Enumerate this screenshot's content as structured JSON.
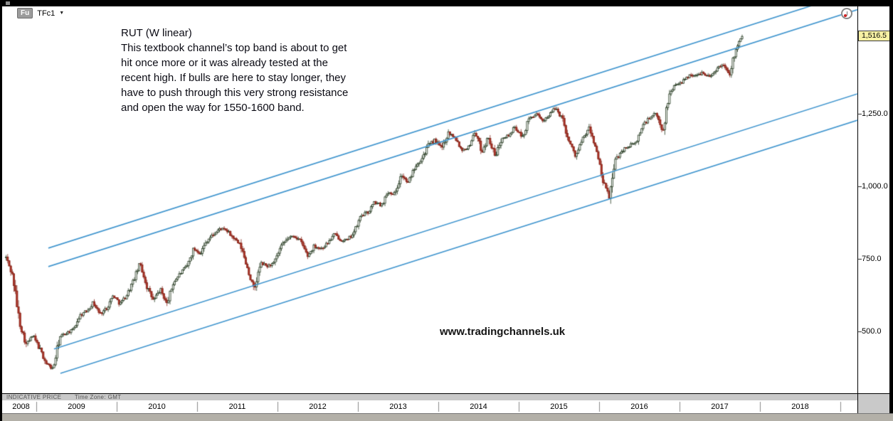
{
  "window": {
    "badge": "Fu",
    "symbol": "TFc1",
    "dropdown": "▼"
  },
  "annotation": {
    "title": "RUT (W linear)",
    "lines": [
      "This textbook channel’s top band is about to get",
      "hit once more or it was already tested at the",
      "recent high. If bulls are here to stay longer, they",
      "have to push through this very strong resistance",
      "and open the way for 1550-1600 band."
    ]
  },
  "watermark": "www.tradingchannels.uk",
  "status_bar": {
    "indicative": "INDICATIVE PRICE",
    "timezone": "Time Zone: GMT"
  },
  "price_axis": {
    "current": "1,516.5",
    "current_value": 1516.5,
    "ticks": [
      {
        "label": "1,250.0",
        "value": 1250
      },
      {
        "label": "1,000.0",
        "value": 1000
      },
      {
        "label": "750.0",
        "value": 750
      },
      {
        "label": "500.0",
        "value": 500
      }
    ]
  },
  "time_axis": {
    "years": [
      "2008",
      "2009",
      "2010",
      "2011",
      "2012",
      "2013",
      "2014",
      "2015",
      "2016",
      "2017",
      "2018"
    ]
  },
  "colors": {
    "channel": "#4497cf",
    "up_fill": "#ffffff",
    "up_stroke": "#24391f",
    "down_fill": "#b23327",
    "down_stroke": "#832318",
    "current_tag_bg": "#f8f1a4"
  },
  "chart_data": {
    "type": "candlestick",
    "instrument": "RUT (TFc1 Russell 2000 futures)",
    "interval": "weekly, linear scale",
    "x_range_years": [
      2008.6,
      2019.6
    ],
    "y_axis_range": [
      290,
      1615
    ],
    "y_tick_values": [
      500,
      750,
      1000,
      1250
    ],
    "last_price": 1516.5,
    "grid": false,
    "monthly_closes": [
      [
        "2008-08",
        755
      ],
      [
        "2008-09",
        690
      ],
      [
        "2008-10",
        530
      ],
      [
        "2008-11",
        455
      ],
      [
        "2008-12",
        485
      ],
      [
        "2009-01",
        440
      ],
      [
        "2009-02",
        390
      ],
      [
        "2009-03",
        370
      ],
      [
        "2009-04",
        480
      ],
      [
        "2009-05",
        495
      ],
      [
        "2009-06",
        505
      ],
      [
        "2009-07",
        555
      ],
      [
        "2009-08",
        570
      ],
      [
        "2009-09",
        600
      ],
      [
        "2009-10",
        560
      ],
      [
        "2009-11",
        580
      ],
      [
        "2009-12",
        625
      ],
      [
        "2010-01",
        595
      ],
      [
        "2010-02",
        625
      ],
      [
        "2010-03",
        675
      ],
      [
        "2010-04",
        735
      ],
      [
        "2010-05",
        655
      ],
      [
        "2010-06",
        605
      ],
      [
        "2010-07",
        645
      ],
      [
        "2010-08",
        595
      ],
      [
        "2010-09",
        670
      ],
      [
        "2010-10",
        700
      ],
      [
        "2010-11",
        725
      ],
      [
        "2010-12",
        785
      ],
      [
        "2011-01",
        770
      ],
      [
        "2011-02",
        815
      ],
      [
        "2011-03",
        835
      ],
      [
        "2011-04",
        855
      ],
      [
        "2011-05",
        845
      ],
      [
        "2011-06",
        820
      ],
      [
        "2011-07",
        795
      ],
      [
        "2011-08",
        720
      ],
      [
        "2011-09",
        640
      ],
      [
        "2011-10",
        735
      ],
      [
        "2011-11",
        725
      ],
      [
        "2011-12",
        735
      ],
      [
        "2012-01",
        790
      ],
      [
        "2012-02",
        820
      ],
      [
        "2012-03",
        830
      ],
      [
        "2012-04",
        810
      ],
      [
        "2012-05",
        760
      ],
      [
        "2012-06",
        795
      ],
      [
        "2012-07",
        785
      ],
      [
        "2012-08",
        805
      ],
      [
        "2012-09",
        835
      ],
      [
        "2012-10",
        815
      ],
      [
        "2012-11",
        815
      ],
      [
        "2012-12",
        845
      ],
      [
        "2013-01",
        900
      ],
      [
        "2013-02",
        910
      ],
      [
        "2013-03",
        945
      ],
      [
        "2013-04",
        935
      ],
      [
        "2013-05",
        980
      ],
      [
        "2013-06",
        975
      ],
      [
        "2013-07",
        1040
      ],
      [
        "2013-08",
        1010
      ],
      [
        "2013-09",
        1070
      ],
      [
        "2013-10",
        1095
      ],
      [
        "2013-11",
        1140
      ],
      [
        "2013-12",
        1160
      ],
      [
        "2014-01",
        1130
      ],
      [
        "2014-02",
        1185
      ],
      [
        "2014-03",
        1170
      ],
      [
        "2014-04",
        1125
      ],
      [
        "2014-05",
        1135
      ],
      [
        "2014-06",
        1190
      ],
      [
        "2014-07",
        1120
      ],
      [
        "2014-08",
        1170
      ],
      [
        "2014-09",
        1100
      ],
      [
        "2014-10",
        1170
      ],
      [
        "2014-11",
        1175
      ],
      [
        "2014-12",
        1205
      ],
      [
        "2015-01",
        1165
      ],
      [
        "2015-02",
        1230
      ],
      [
        "2015-03",
        1250
      ],
      [
        "2015-04",
        1225
      ],
      [
        "2015-05",
        1245
      ],
      [
        "2015-06",
        1270
      ],
      [
        "2015-07",
        1235
      ],
      [
        "2015-08",
        1155
      ],
      [
        "2015-09",
        1105
      ],
      [
        "2015-10",
        1160
      ],
      [
        "2015-11",
        1200
      ],
      [
        "2015-12",
        1135
      ],
      [
        "2016-01",
        1020
      ],
      [
        "2016-02",
        965
      ],
      [
        "2016-03",
        1095
      ],
      [
        "2016-04",
        1125
      ],
      [
        "2016-05",
        1140
      ],
      [
        "2016-06",
        1150
      ],
      [
        "2016-07",
        1210
      ],
      [
        "2016-08",
        1235
      ],
      [
        "2016-09",
        1250
      ],
      [
        "2016-10",
        1190
      ],
      [
        "2016-11",
        1320
      ],
      [
        "2016-12",
        1355
      ],
      [
        "2017-01",
        1360
      ],
      [
        "2017-02",
        1385
      ],
      [
        "2017-03",
        1380
      ],
      [
        "2017-04",
        1395
      ],
      [
        "2017-05",
        1375
      ],
      [
        "2017-06",
        1405
      ],
      [
        "2017-07",
        1420
      ],
      [
        "2017-08",
        1390
      ],
      [
        "2017-09",
        1485
      ],
      [
        "2017-10",
        1516.5
      ]
    ],
    "notable": {
      "low": {
        "date": "2009-03",
        "price": 350
      },
      "high": {
        "date": "2017-10",
        "price": 1516.5
      }
    },
    "channel": {
      "description": "4 parallel ascending blue trend lines forming a channel with top and bottom bands",
      "slope_points_per_year": 88,
      "lines": [
        {
          "price_at_2009": 774,
          "start_year": 2009.15
        },
        {
          "price_at_2009": 710,
          "start_year": 2009.15
        },
        {
          "price_at_2009": 420,
          "start_year": 2009.22
        },
        {
          "price_at_2009": 329,
          "start_year": 2009.3
        }
      ]
    }
  }
}
